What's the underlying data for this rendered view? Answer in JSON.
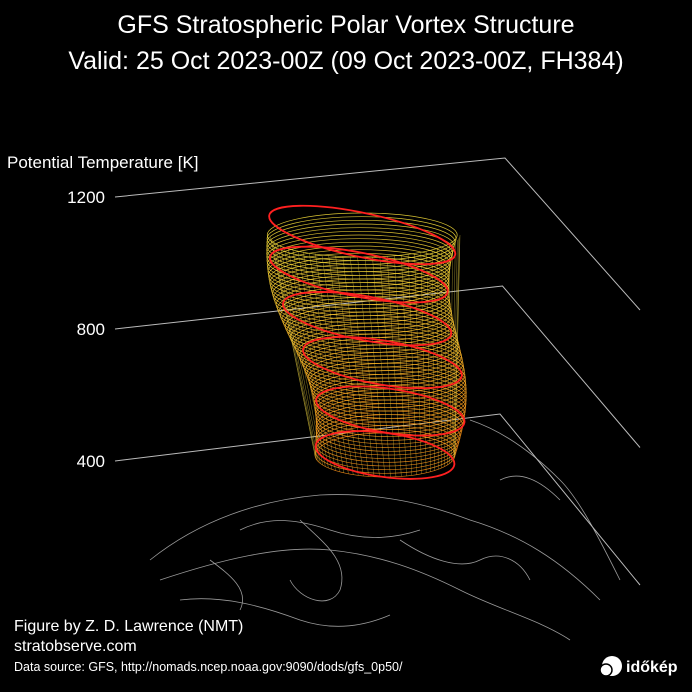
{
  "chart_data": {
    "type": "isosurface-3d",
    "title": "GFS Stratospheric Polar Vortex Structure",
    "subtitle": "Valid: 25 Oct 2023-00Z  (09 Oct 2023-00Z, FH384)",
    "z_label": "Potential Temperature [K]",
    "zlim": [
      400,
      1200
    ],
    "zticks": [
      400,
      800,
      1200
    ],
    "credit": "Figure by Z. D. Lawrence (NMT)",
    "website": "stratobserve.com",
    "source": "Data source: GFS, http://nomads.ncep.noaa.gov:9090/dods/gfs_0p50/",
    "logo": "időkép"
  }
}
